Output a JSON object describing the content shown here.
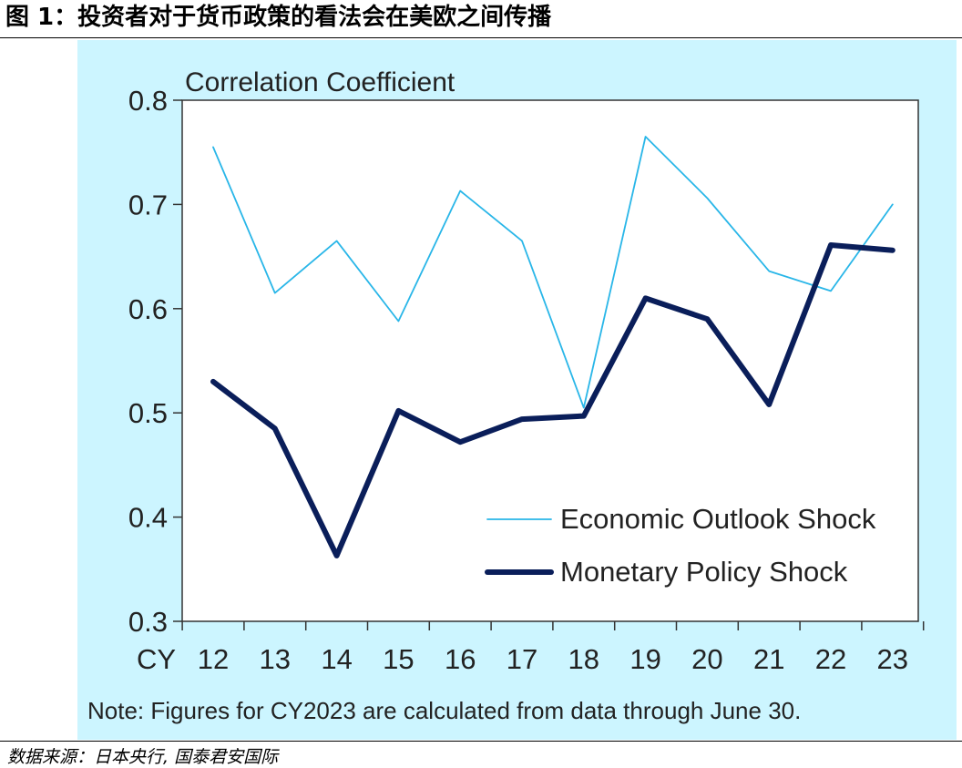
{
  "page": {
    "title": "图 1：投资者对于货币政策的看法会在美欧之间传播",
    "source": "数据来源：日本央行, 国泰君安国际"
  },
  "chart_data": {
    "type": "line",
    "title": "",
    "ylabel": "Correlation Coefficient",
    "x_axis_prefix": "CY",
    "categories": [
      "12",
      "13",
      "14",
      "15",
      "16",
      "17",
      "18",
      "19",
      "20",
      "21",
      "22",
      "23"
    ],
    "ylim": [
      0.3,
      0.8
    ],
    "yticks": [
      "0.3",
      "0.4",
      "0.5",
      "0.6",
      "0.7",
      "0.8"
    ],
    "grid": false,
    "legend_position": "lower-right",
    "background_color": "#ccf5ff",
    "series": [
      {
        "name": "Economic Outlook Shock",
        "color": "#29b6e8",
        "style": "thin",
        "values": [
          0.755,
          0.615,
          0.665,
          0.588,
          0.713,
          0.665,
          0.505,
          0.765,
          0.706,
          0.636,
          0.617,
          0.7
        ]
      },
      {
        "name": "Monetary Policy Shock",
        "color": "#0a1e5a",
        "style": "thick",
        "values": [
          0.53,
          0.485,
          0.363,
          0.502,
          0.472,
          0.494,
          0.497,
          0.61,
          0.59,
          0.508,
          0.661,
          0.656
        ]
      }
    ],
    "note": "Note: Figures for CY2023 are calculated from data through June 30."
  }
}
